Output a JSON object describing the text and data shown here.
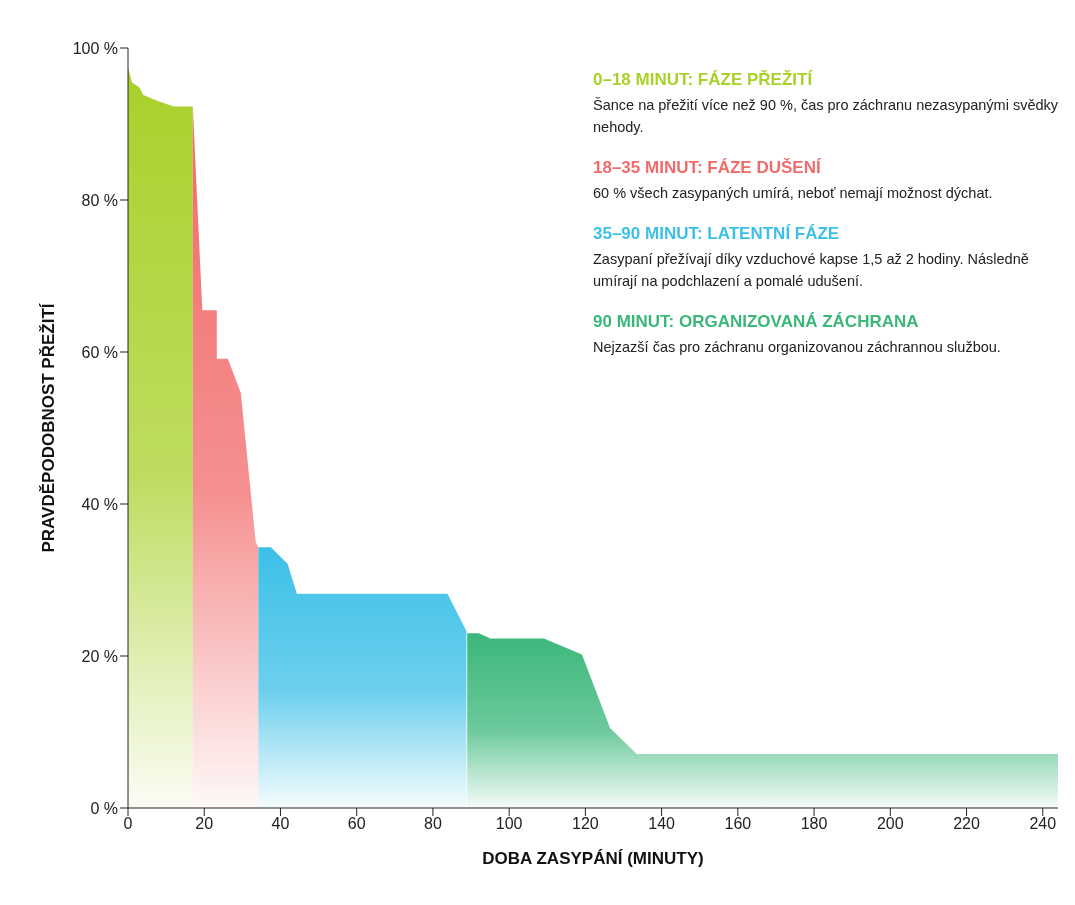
{
  "chart_data": {
    "type": "area",
    "xlabel": "DOBA ZASYPÁNÍ (MINUTY)",
    "ylabel": "PRAVDĚPODOBNOST PŘEŽITÍ",
    "xlim": [
      0,
      244
    ],
    "xticks": [
      0,
      20,
      40,
      60,
      80,
      100,
      120,
      140,
      160,
      180,
      200,
      220,
      240
    ],
    "ylim": [
      0,
      100
    ],
    "yticks": [
      {
        "value": 0,
        "label": "0 %"
      },
      {
        "value": 20,
        "label": "20 %"
      },
      {
        "value": 40,
        "label": "40 %"
      },
      {
        "value": 60,
        "label": "60 %"
      },
      {
        "value": 80,
        "label": "80 %"
      },
      {
        "value": 100,
        "label": "100 %"
      }
    ],
    "grid": false,
    "legend": false,
    "series": [
      {
        "color": "#a8d12a",
        "x": [
          0,
          1,
          3,
          4,
          8,
          12,
          17
        ],
        "values": [
          97.5,
          95.5,
          94.8,
          93.8,
          93,
          92.3,
          92.3
        ]
      },
      {
        "color": "#f26b6b",
        "x": [
          17,
          19.5,
          23.3,
          23.3,
          26.2,
          29.6,
          33.5,
          34.2
        ],
        "values": [
          92.3,
          65.5,
          65.5,
          59.1,
          59.1,
          54.6,
          35,
          34.3
        ]
      },
      {
        "color": "#3cc0e8",
        "x": [
          34.2,
          37.5,
          41.9,
          44.3,
          83.8,
          88.8
        ],
        "values": [
          34.3,
          34.3,
          32.1,
          28.2,
          28.2,
          23.3
        ]
      },
      {
        "color": "#3bb77a",
        "x": [
          89,
          92,
          95.1,
          109.1,
          119.1,
          126.5,
          133.5,
          244
        ],
        "values": [
          23,
          23,
          22.3,
          22.3,
          20.2,
          10.5,
          7.1,
          7.1
        ]
      }
    ],
    "annotations": [
      "0–18 MINUT: FÁZE PŘEŽITÍ",
      "Šance na přežití více než 90 %, čas pro záchranu nezasypanými svědky nehody.",
      "18–35 MINUT: FÁZE DUŠENÍ",
      "60 % všech zasypaných umírá, neboť nemají možnost dýchat.",
      "35–90 MINUT: LATENTNÍ FÁZE",
      "Zasypaní přežívají díky vzduchové kapse 1,5 až 2 hodiny. Následně umírají na podchlazení a pomalé udušení.",
      "90 MINUT: ORGANIZOVANÁ ZÁCHRANA",
      "Nejzazší čas pro záchranu organizovanou záchrannou službou."
    ]
  }
}
